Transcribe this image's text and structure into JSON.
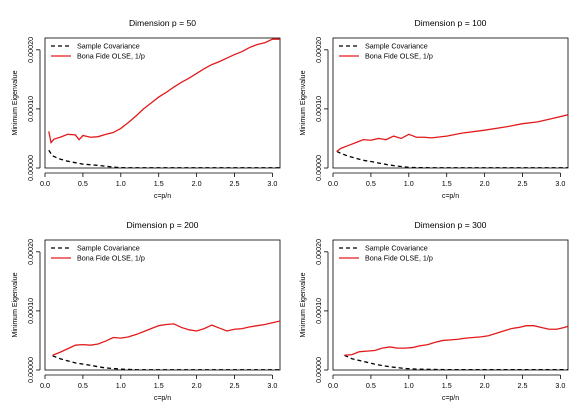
{
  "colors": {
    "sample": "#000000",
    "olse": "#e31a1c",
    "axis": "#000000"
  },
  "chart_data": [
    {
      "type": "line",
      "title": "Dimension p = 50",
      "xlabel": "c=p/n",
      "ylabel": "Minimum Eigenvalue",
      "xlim": [
        0,
        3.1
      ],
      "ylim": [
        0,
        0.00022
      ],
      "x_ticks": [
        "0.0",
        "0.5",
        "1.0",
        "1.5",
        "2.0",
        "2.5",
        "3.0"
      ],
      "y_ticks": [
        "0.00000",
        "0.00010",
        "0.00020"
      ],
      "legend": {
        "position": "top-left",
        "entries": [
          "Sample Covariance",
          "Bona Fide OLSE,  1/p"
        ]
      },
      "series": [
        {
          "name": "Sample Covariance",
          "style": "dashed",
          "color": "#000000",
          "x": [
            0.05,
            0.1,
            0.2,
            0.3,
            0.4,
            0.5,
            0.6,
            0.7,
            0.8,
            0.9,
            1.0,
            1.2,
            1.5,
            2.0,
            2.5,
            3.1
          ],
          "y": [
            3e-05,
            2.05e-05,
            1.5e-05,
            1.15e-05,
            9e-06,
            6.5e-06,
            5.5e-06,
            4.5e-06,
            3e-06,
            1.5e-06,
            5e-07,
            3e-07,
            3e-07,
            3e-07,
            3e-07,
            3e-07
          ]
        },
        {
          "name": "Bona Fide OLSE,  1/p",
          "style": "solid",
          "color": "#e31a1c",
          "x": [
            0.05,
            0.08,
            0.12,
            0.2,
            0.3,
            0.4,
            0.45,
            0.5,
            0.6,
            0.7,
            0.8,
            0.9,
            1.0,
            1.1,
            1.2,
            1.3,
            1.4,
            1.5,
            1.6,
            1.7,
            1.8,
            1.9,
            2.0,
            2.1,
            2.2,
            2.3,
            2.4,
            2.5,
            2.6,
            2.7,
            2.8,
            2.9,
            3.0,
            3.1
          ],
          "y": [
            6.2e-05,
            4.3e-05,
            4.9e-05,
            5.2e-05,
            5.7e-05,
            5.6e-05,
            4.8e-05,
            5.5e-05,
            5.2e-05,
            5.3e-05,
            5.7e-05,
            6e-05,
            6.7e-05,
            7.7e-05,
            8.8e-05,
            0.0001,
            0.00011,
            0.00012,
            0.000128,
            0.000137,
            0.000145,
            0.000152,
            0.00016,
            0.000168,
            0.000175,
            0.00018,
            0.000186,
            0.000192,
            0.000197,
            0.000204,
            0.000209,
            0.000212,
            0.000218,
            0.000218
          ]
        }
      ]
    },
    {
      "type": "line",
      "title": "Dimension p = 100",
      "xlabel": "c=p/n",
      "ylabel": "Minimum Eigenvalue",
      "xlim": [
        0,
        3.1
      ],
      "ylim": [
        0,
        0.00022
      ],
      "x_ticks": [
        "0.0",
        "0.5",
        "1.0",
        "1.5",
        "2.0",
        "2.5",
        "3.0"
      ],
      "y_ticks": [
        "0.00000",
        "0.00010",
        "0.00020"
      ],
      "legend": {
        "position": "top-left",
        "entries": [
          "Sample Covariance",
          "Bona Fide OLSE,  1/p"
        ]
      },
      "series": [
        {
          "name": "Sample Covariance",
          "style": "dashed",
          "color": "#000000",
          "x": [
            0.05,
            0.1,
            0.2,
            0.3,
            0.4,
            0.5,
            0.6,
            0.7,
            0.8,
            0.9,
            1.0,
            1.2,
            1.5,
            2.0,
            2.5,
            3.1
          ],
          "y": [
            2.8e-05,
            2.5e-05,
            2e-05,
            1.65e-05,
            1.3e-05,
            1.1e-05,
            8.5e-06,
            6e-06,
            4e-06,
            2.5e-06,
            1e-06,
            5e-07,
            3e-07,
            3e-07,
            3e-07,
            3e-07
          ]
        },
        {
          "name": "Bona Fide OLSE,  1/p",
          "style": "solid",
          "color": "#e31a1c",
          "x": [
            0.05,
            0.1,
            0.2,
            0.3,
            0.4,
            0.5,
            0.6,
            0.7,
            0.8,
            0.9,
            1.0,
            1.1,
            1.2,
            1.3,
            1.5,
            1.7,
            2.0,
            2.3,
            2.5,
            2.7,
            2.9,
            3.1
          ],
          "y": [
            2.8e-05,
            3.3e-05,
            3.8e-05,
            4.3e-05,
            4.8e-05,
            4.7e-05,
            5e-05,
            4.8e-05,
            5.4e-05,
            5e-05,
            5.7e-05,
            5.2e-05,
            5.2e-05,
            5.1e-05,
            5.4e-05,
            5.9e-05,
            6.4e-05,
            7e-05,
            7.5e-05,
            7.8e-05,
            8.4e-05,
            9e-05
          ]
        }
      ]
    },
    {
      "type": "line",
      "title": "Dimension p = 200",
      "xlabel": "c=p/n",
      "ylabel": "Minimum Eigenvalue",
      "xlim": [
        0,
        3.1
      ],
      "ylim": [
        0,
        0.00022
      ],
      "x_ticks": [
        "0.0",
        "0.5",
        "1.0",
        "1.5",
        "2.0",
        "2.5",
        "3.0"
      ],
      "y_ticks": [
        "0.00000",
        "0.00010",
        "0.00020"
      ],
      "legend": {
        "position": "top-left",
        "entries": [
          "Sample Covariance",
          "Bona Fide OLSE,  1/p"
        ]
      },
      "series": [
        {
          "name": "Sample Covariance",
          "style": "dashed",
          "color": "#000000",
          "x": [
            0.1,
            0.2,
            0.3,
            0.4,
            0.5,
            0.6,
            0.7,
            0.8,
            0.9,
            1.0,
            1.2,
            1.5,
            2.0,
            2.5,
            3.1
          ],
          "y": [
            2.4e-05,
            1.9e-05,
            1.55e-05,
            1.2e-05,
            1e-05,
            8e-06,
            5.5e-06,
            3.5e-06,
            2.5e-06,
            1.5e-06,
            5e-07,
            3e-07,
            3e-07,
            3e-07,
            3e-07
          ]
        },
        {
          "name": "Bona Fide OLSE,  1/p",
          "style": "solid",
          "color": "#e31a1c",
          "x": [
            0.1,
            0.2,
            0.3,
            0.4,
            0.5,
            0.6,
            0.7,
            0.8,
            0.9,
            1.0,
            1.1,
            1.2,
            1.3,
            1.4,
            1.5,
            1.6,
            1.7,
            1.8,
            1.9,
            2.0,
            2.1,
            2.2,
            2.3,
            2.4,
            2.5,
            2.6,
            2.7,
            2.8,
            2.9,
            3.0,
            3.1
          ],
          "y": [
            2.5e-05,
            3e-05,
            3.6e-05,
            4.2e-05,
            4.3e-05,
            4.2e-05,
            4.4e-05,
            4.9e-05,
            5.5e-05,
            5.4e-05,
            5.6e-05,
            6e-05,
            6.5e-05,
            7e-05,
            7.5e-05,
            7.7e-05,
            7.8e-05,
            7.2e-05,
            6.8e-05,
            6.6e-05,
            7e-05,
            7.6e-05,
            7.1e-05,
            6.6e-05,
            6.9e-05,
            7e-05,
            7.3e-05,
            7.5e-05,
            7.7e-05,
            8e-05,
            8.3e-05
          ]
        }
      ]
    },
    {
      "type": "line",
      "title": "Dimension p = 300",
      "xlabel": "c=p/n",
      "ylabel": "Minimum Eigenvalue",
      "xlim": [
        0,
        3.1
      ],
      "ylim": [
        0,
        0.00022
      ],
      "x_ticks": [
        "0.0",
        "0.5",
        "1.0",
        "1.5",
        "2.0",
        "2.5",
        "3.0"
      ],
      "y_ticks": [
        "0.00000",
        "0.00010",
        "0.00020"
      ],
      "legend": {
        "position": "top-left",
        "entries": [
          "Sample Covariance",
          "Bona Fide OLSE,  1/p"
        ]
      },
      "series": [
        {
          "name": "Sample Covariance",
          "style": "dashed",
          "color": "#000000",
          "x": [
            0.15,
            0.25,
            0.35,
            0.45,
            0.55,
            0.65,
            0.75,
            0.85,
            0.95,
            1.1,
            1.3,
            1.5,
            2.0,
            2.5,
            3.1
          ],
          "y": [
            2.5e-05,
            1.9e-05,
            1.6e-05,
            1.3e-05,
            1e-05,
            7.5e-06,
            5.5e-06,
            4e-06,
            2.5e-06,
            1.5e-06,
            1e-06,
            5e-07,
            5e-07,
            5e-07,
            5e-07
          ]
        },
        {
          "name": "Bona Fide OLSE,  1/p",
          "style": "solid",
          "color": "#e31a1c",
          "x": [
            0.15,
            0.25,
            0.35,
            0.45,
            0.55,
            0.65,
            0.75,
            0.85,
            0.95,
            1.05,
            1.15,
            1.25,
            1.35,
            1.45,
            1.55,
            1.65,
            1.75,
            1.85,
            1.95,
            2.05,
            2.15,
            2.25,
            2.35,
            2.45,
            2.55,
            2.65,
            2.75,
            2.85,
            2.95,
            3.05,
            3.1
          ],
          "y": [
            2.5e-05,
            2.6e-05,
            3.1e-05,
            3.2e-05,
            3.3e-05,
            3.7e-05,
            3.9e-05,
            3.7e-05,
            3.7e-05,
            3.8e-05,
            4.1e-05,
            4.3e-05,
            4.7e-05,
            5e-05,
            5.1e-05,
            5.2e-05,
            5.4e-05,
            5.5e-05,
            5.6e-05,
            5.8e-05,
            6.2e-05,
            6.6e-05,
            7e-05,
            7.2e-05,
            7.5e-05,
            7.5e-05,
            7.2e-05,
            6.9e-05,
            6.9e-05,
            7.2e-05,
            7.4e-05
          ]
        }
      ]
    }
  ]
}
